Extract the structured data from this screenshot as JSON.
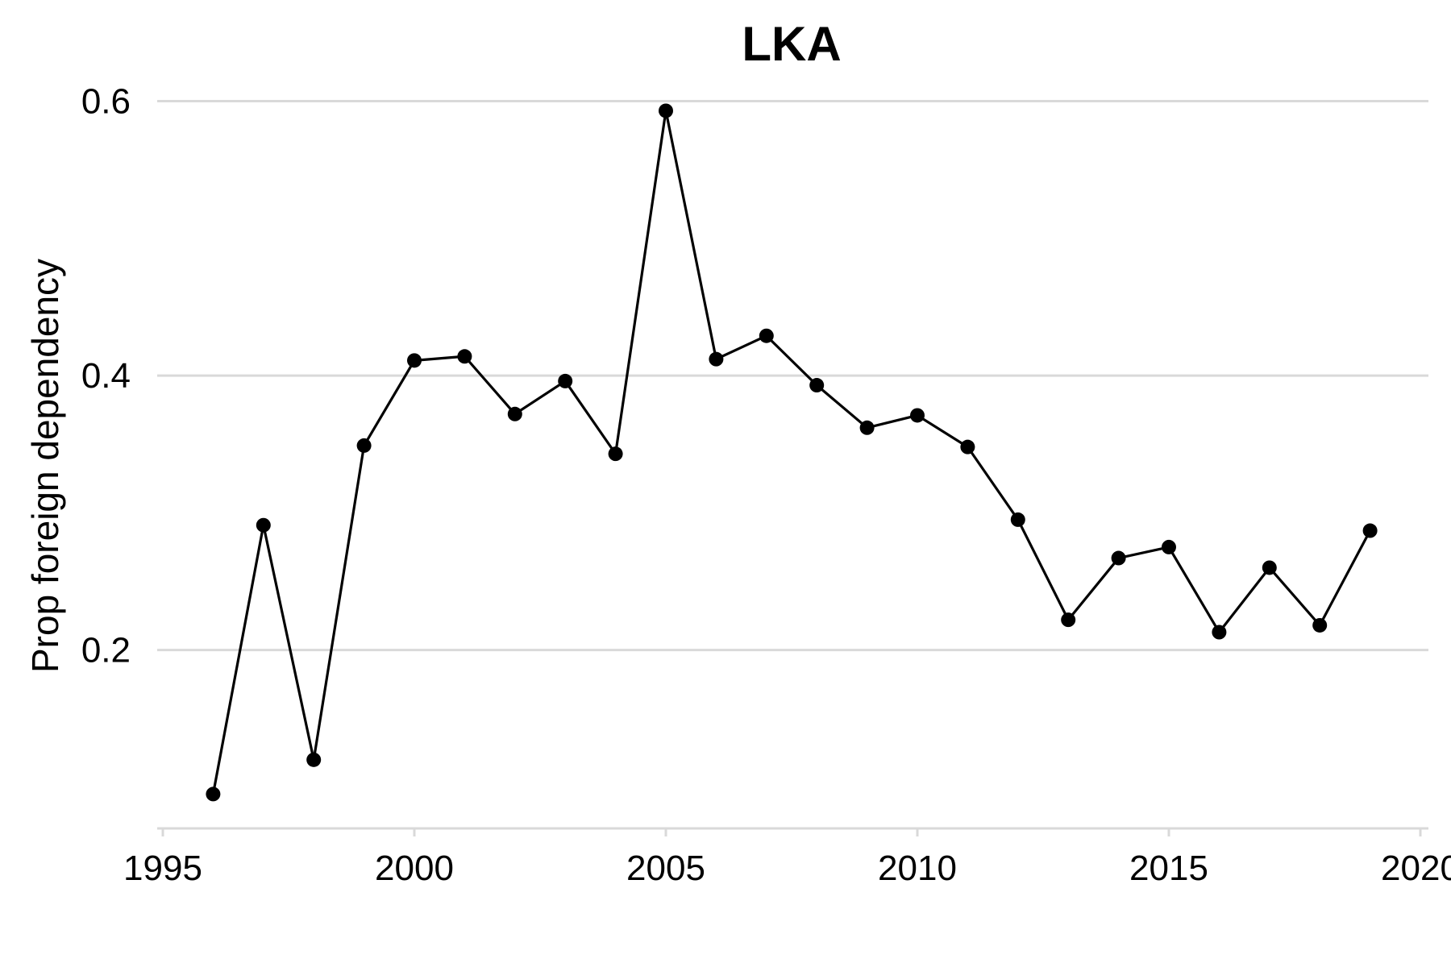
{
  "chart_data": {
    "type": "line",
    "title": "LKA",
    "xlabel": "",
    "ylabel": "Prop foreign dependency",
    "x": [
      1996,
      1997,
      1998,
      1999,
      2000,
      2001,
      2002,
      2003,
      2004,
      2005,
      2006,
      2007,
      2008,
      2009,
      2010,
      2011,
      2012,
      2013,
      2014,
      2015,
      2016,
      2017,
      2018,
      2019
    ],
    "series": [
      {
        "values": [
          0.095,
          0.291,
          0.12,
          0.349,
          0.411,
          0.414,
          0.372,
          0.396,
          0.343,
          0.593,
          0.412,
          0.429,
          0.393,
          0.362,
          0.371,
          0.348,
          0.295,
          0.222,
          0.267,
          0.275,
          0.213,
          0.26,
          0.218,
          0.287
        ],
        "color": "#000000"
      }
    ],
    "xlim": [
      1995,
      2020
    ],
    "ylim": [
      0.07,
      0.615
    ],
    "xticks": [
      1995,
      2000,
      2005,
      2010,
      2015,
      2020
    ],
    "yticks": [
      0.2,
      0.4,
      0.6
    ],
    "xtick_labels": [
      "1995",
      "2000",
      "2005",
      "2010",
      "2015",
      "2020"
    ],
    "ytick_labels": [
      "0.2",
      "0.4",
      "0.6"
    ],
    "grid": "horizontal major lines",
    "gridline_color": "#d9d9d9",
    "axis_line_color": "#d9d9d9",
    "legend": "none"
  }
}
